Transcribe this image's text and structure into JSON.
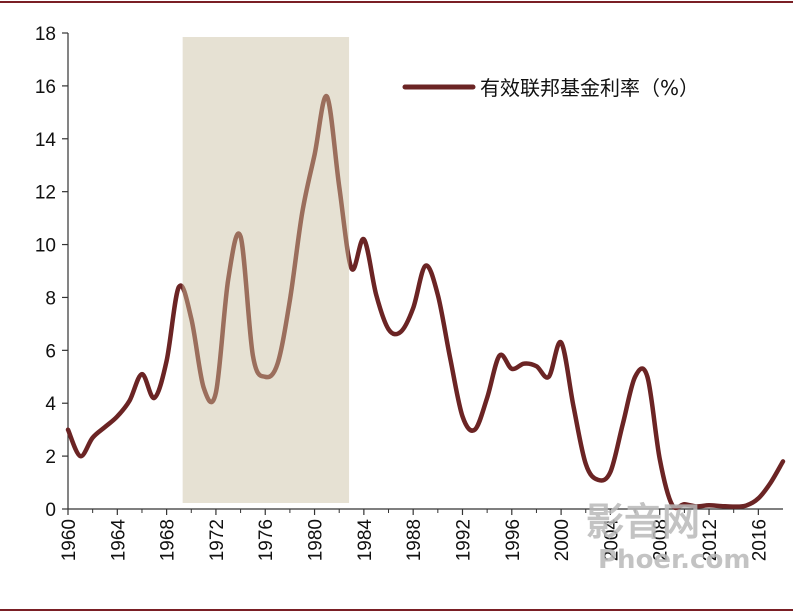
{
  "chart_data": {
    "type": "line",
    "title": "",
    "xlabel": "",
    "ylabel": "",
    "ylim": [
      0,
      18
    ],
    "xlim": [
      1960,
      2018
    ],
    "x_ticks": [
      "1960",
      "1964",
      "1968",
      "1972",
      "1976",
      "1980",
      "1984",
      "1988",
      "1992",
      "1996",
      "2000",
      "2004",
      "2008",
      "2012",
      "2016"
    ],
    "y_ticks": [
      "0",
      "2",
      "4",
      "6",
      "8",
      "10",
      "12",
      "14",
      "16",
      "18"
    ],
    "legend": {
      "position": "top-right"
    },
    "shaded_region": {
      "x_start": 1969.3,
      "x_end": 1982.8,
      "color": "#e6e1d3"
    },
    "series": [
      {
        "name": "有效联邦基金利率（%）",
        "color": "#6b2424",
        "highlight_color": "#9b6e5c",
        "x": [
          1960,
          1961,
          1962,
          1963,
          1964,
          1965,
          1966,
          1967,
          1968,
          1969,
          1970,
          1971,
          1972,
          1973,
          1974,
          1975,
          1976,
          1977,
          1978,
          1979,
          1980,
          1981,
          1982,
          1983,
          1984,
          1985,
          1986,
          1987,
          1988,
          1989,
          1990,
          1991,
          1992,
          1993,
          1994,
          1995,
          1996,
          1997,
          1998,
          1999,
          2000,
          2001,
          2002,
          2003,
          2004,
          2005,
          2006,
          2007,
          2008,
          2009,
          2010,
          2011,
          2012,
          2013,
          2014,
          2015,
          2016,
          2017,
          2018
        ],
        "values": [
          3.0,
          2.0,
          2.7,
          3.1,
          3.5,
          4.1,
          5.1,
          4.2,
          5.6,
          8.4,
          7.2,
          4.6,
          4.4,
          8.7,
          10.3,
          5.8,
          5.0,
          5.5,
          7.9,
          11.2,
          13.4,
          15.6,
          12.2,
          9.1,
          10.2,
          8.1,
          6.8,
          6.7,
          7.6,
          9.2,
          8.1,
          5.7,
          3.5,
          3.0,
          4.2,
          5.8,
          5.3,
          5.5,
          5.4,
          5.0,
          6.3,
          3.9,
          1.7,
          1.1,
          1.4,
          3.2,
          5.0,
          5.0,
          1.9,
          0.16,
          0.18,
          0.1,
          0.14,
          0.11,
          0.09,
          0.13,
          0.4,
          1.0,
          1.8
        ]
      }
    ]
  },
  "watermark": {
    "main": "影音网",
    "sub": "Phoer.com"
  }
}
